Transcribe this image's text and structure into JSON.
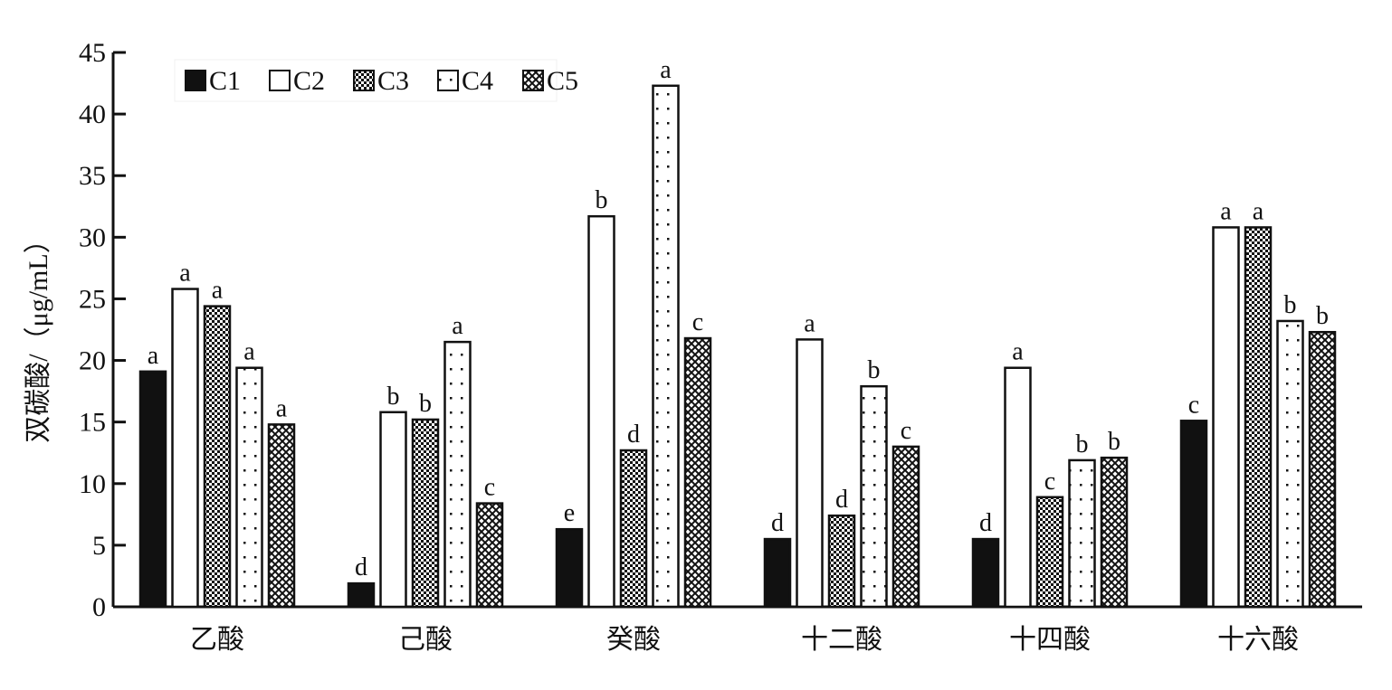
{
  "chart_data": {
    "type": "bar",
    "title": "",
    "xlabel": "",
    "ylabel": "双碳酸/（μg/mL）",
    "ylim": [
      0,
      45
    ],
    "yticks": [
      0,
      5,
      10,
      15,
      20,
      25,
      30,
      35,
      40,
      45
    ],
    "grid": false,
    "legend_position": "top-left",
    "categories": [
      "乙酸",
      "己酸",
      "癸酸",
      "十二酸",
      "十四酸",
      "十六酸"
    ],
    "series": [
      {
        "name": "C1",
        "pattern": "solid",
        "values": [
          19.1,
          1.9,
          6.3,
          5.5,
          5.5,
          15.1
        ],
        "labels": [
          "a",
          "d",
          "e",
          "d",
          "d",
          "c"
        ]
      },
      {
        "name": "C2",
        "pattern": "empty",
        "values": [
          25.8,
          15.8,
          31.7,
          21.7,
          19.4,
          30.8
        ],
        "labels": [
          "a",
          "b",
          "b",
          "a",
          "a",
          "a"
        ]
      },
      {
        "name": "C3",
        "pattern": "dense-dots",
        "values": [
          24.4,
          15.2,
          12.7,
          7.4,
          8.9,
          30.8
        ],
        "labels": [
          "a",
          "b",
          "d",
          "d",
          "c",
          "a"
        ]
      },
      {
        "name": "C4",
        "pattern": "sparse-dots",
        "values": [
          19.4,
          21.5,
          42.3,
          17.9,
          11.9,
          23.2
        ],
        "labels": [
          "a",
          "a",
          "a",
          "b",
          "b",
          "b"
        ]
      },
      {
        "name": "C5",
        "pattern": "crosshatch",
        "values": [
          14.8,
          8.4,
          21.8,
          13.0,
          12.1,
          22.3
        ],
        "labels": [
          "a",
          "c",
          "c",
          "c",
          "b",
          "b"
        ]
      }
    ],
    "colors": {
      "ink": "#111111",
      "background": "#ffffff"
    }
  }
}
